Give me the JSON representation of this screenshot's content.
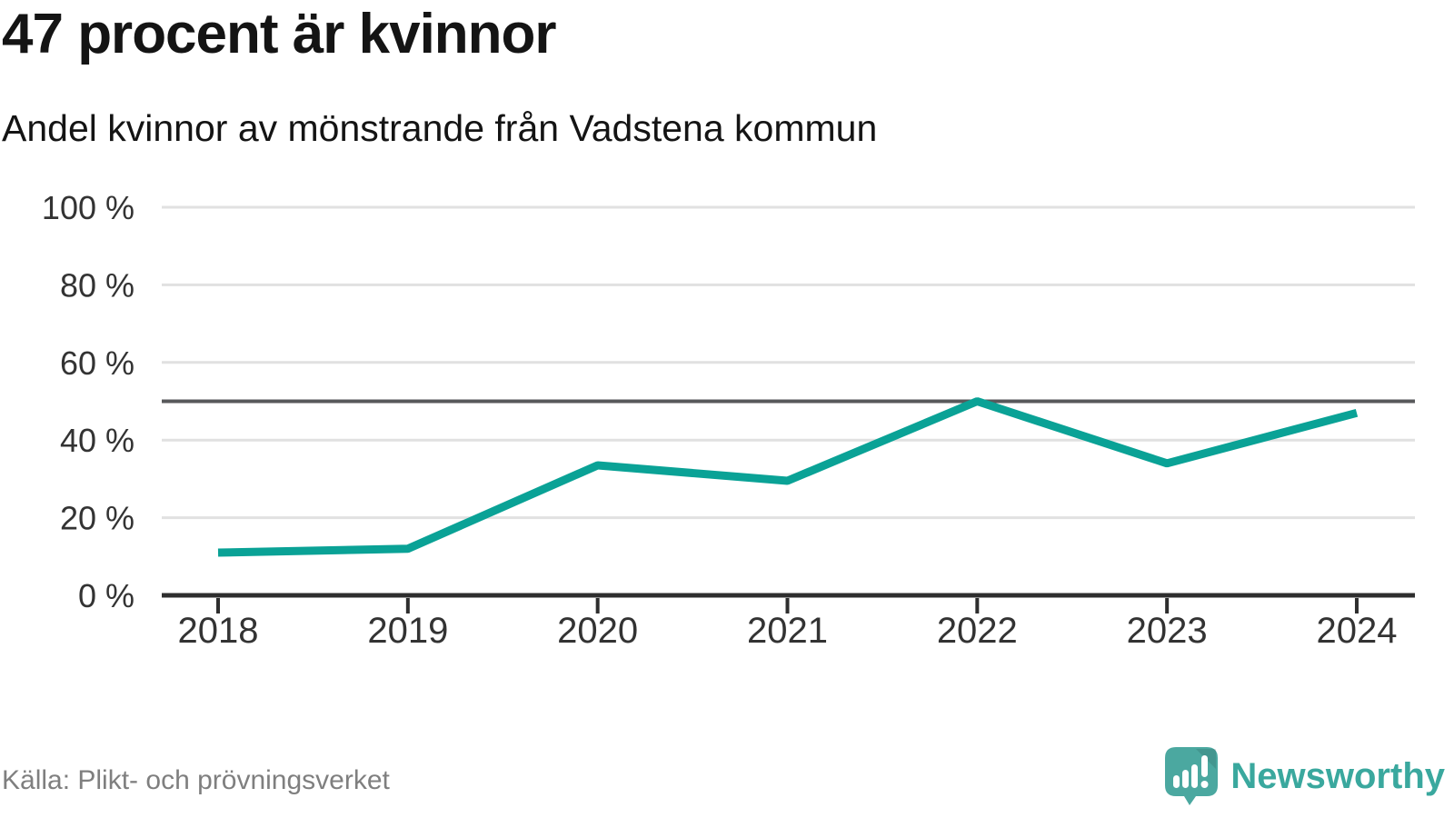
{
  "header": {
    "title": "47 procent är kvinnor",
    "subtitle": "Andel kvinnor av mönstrande från Vadstena kommun"
  },
  "footer": {
    "source": "Källa: Plikt- och prövningsverket",
    "brand": "Newsworthy"
  },
  "colors": {
    "line": "#0aa296",
    "reference": "#58595b",
    "grid": "#e1e1e1",
    "axis": "#2e2e2e",
    "tick_text": "#333333",
    "muted_text": "#7f7f7f",
    "brand_text": "#3aa89e",
    "logo_fill": "#4ba8a0"
  },
  "chart_data": {
    "type": "line",
    "title": "47 procent är kvinnor",
    "subtitle": "Andel kvinnor av mönstrande från Vadstena kommun",
    "categories": [
      "2018",
      "2019",
      "2020",
      "2021",
      "2022",
      "2023",
      "2024"
    ],
    "values": [
      11,
      12,
      33.5,
      29.5,
      50,
      34,
      47
    ],
    "unit": "%",
    "xlabel": "",
    "ylabel": "",
    "ylim": [
      0,
      100
    ],
    "y_ticks": [
      0,
      20,
      40,
      60,
      80,
      100
    ],
    "y_tick_format": "{v} %",
    "reference_line": 50,
    "grid": true,
    "legend": false
  }
}
